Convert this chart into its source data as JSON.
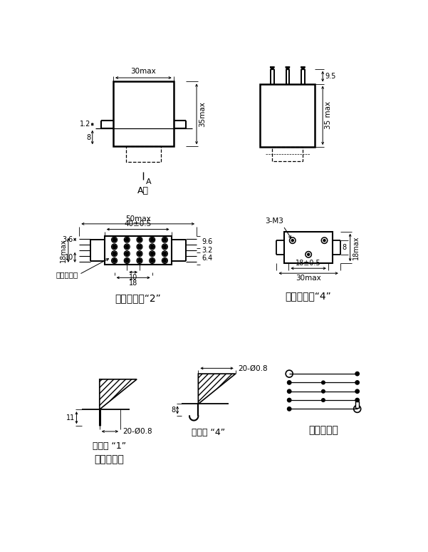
{
  "bg_color": "#ffffff",
  "fig_width": 6.01,
  "fig_height": 7.74,
  "dpi": 100,
  "labels": {
    "30max": "30max",
    "35max": "35max",
    "35max_sp": "35 max",
    "9_5": "9.5",
    "1_2": "1.2",
    "8": "8",
    "50max": "50max",
    "40": "40±0.5",
    "18max": "18max",
    "10": "10",
    "3_6": "3.6",
    "9_6": "9.6",
    "3_2": "3.2",
    "6_4": "6.4",
    "18": "18",
    "3M3": "3-M3",
    "8b": "8",
    "18max_b": "18max",
    "30max_b": "30max",
    "18_05": "18±0.5",
    "11": "11",
    "20_08a": "20-Ø0.8",
    "20_08b": "20-Ø0.8",
    "A": "A",
    "Axiang": "A向",
    "zhise": "着色绵缘子",
    "title_2": "安装方式：“2”",
    "title_4": "安装方式：“4”",
    "pin1": "插针式 “1”",
    "hook4": "焊钉式 “4”",
    "terminal1": "引出端型式",
    "terminal2": "引出端型式"
  }
}
